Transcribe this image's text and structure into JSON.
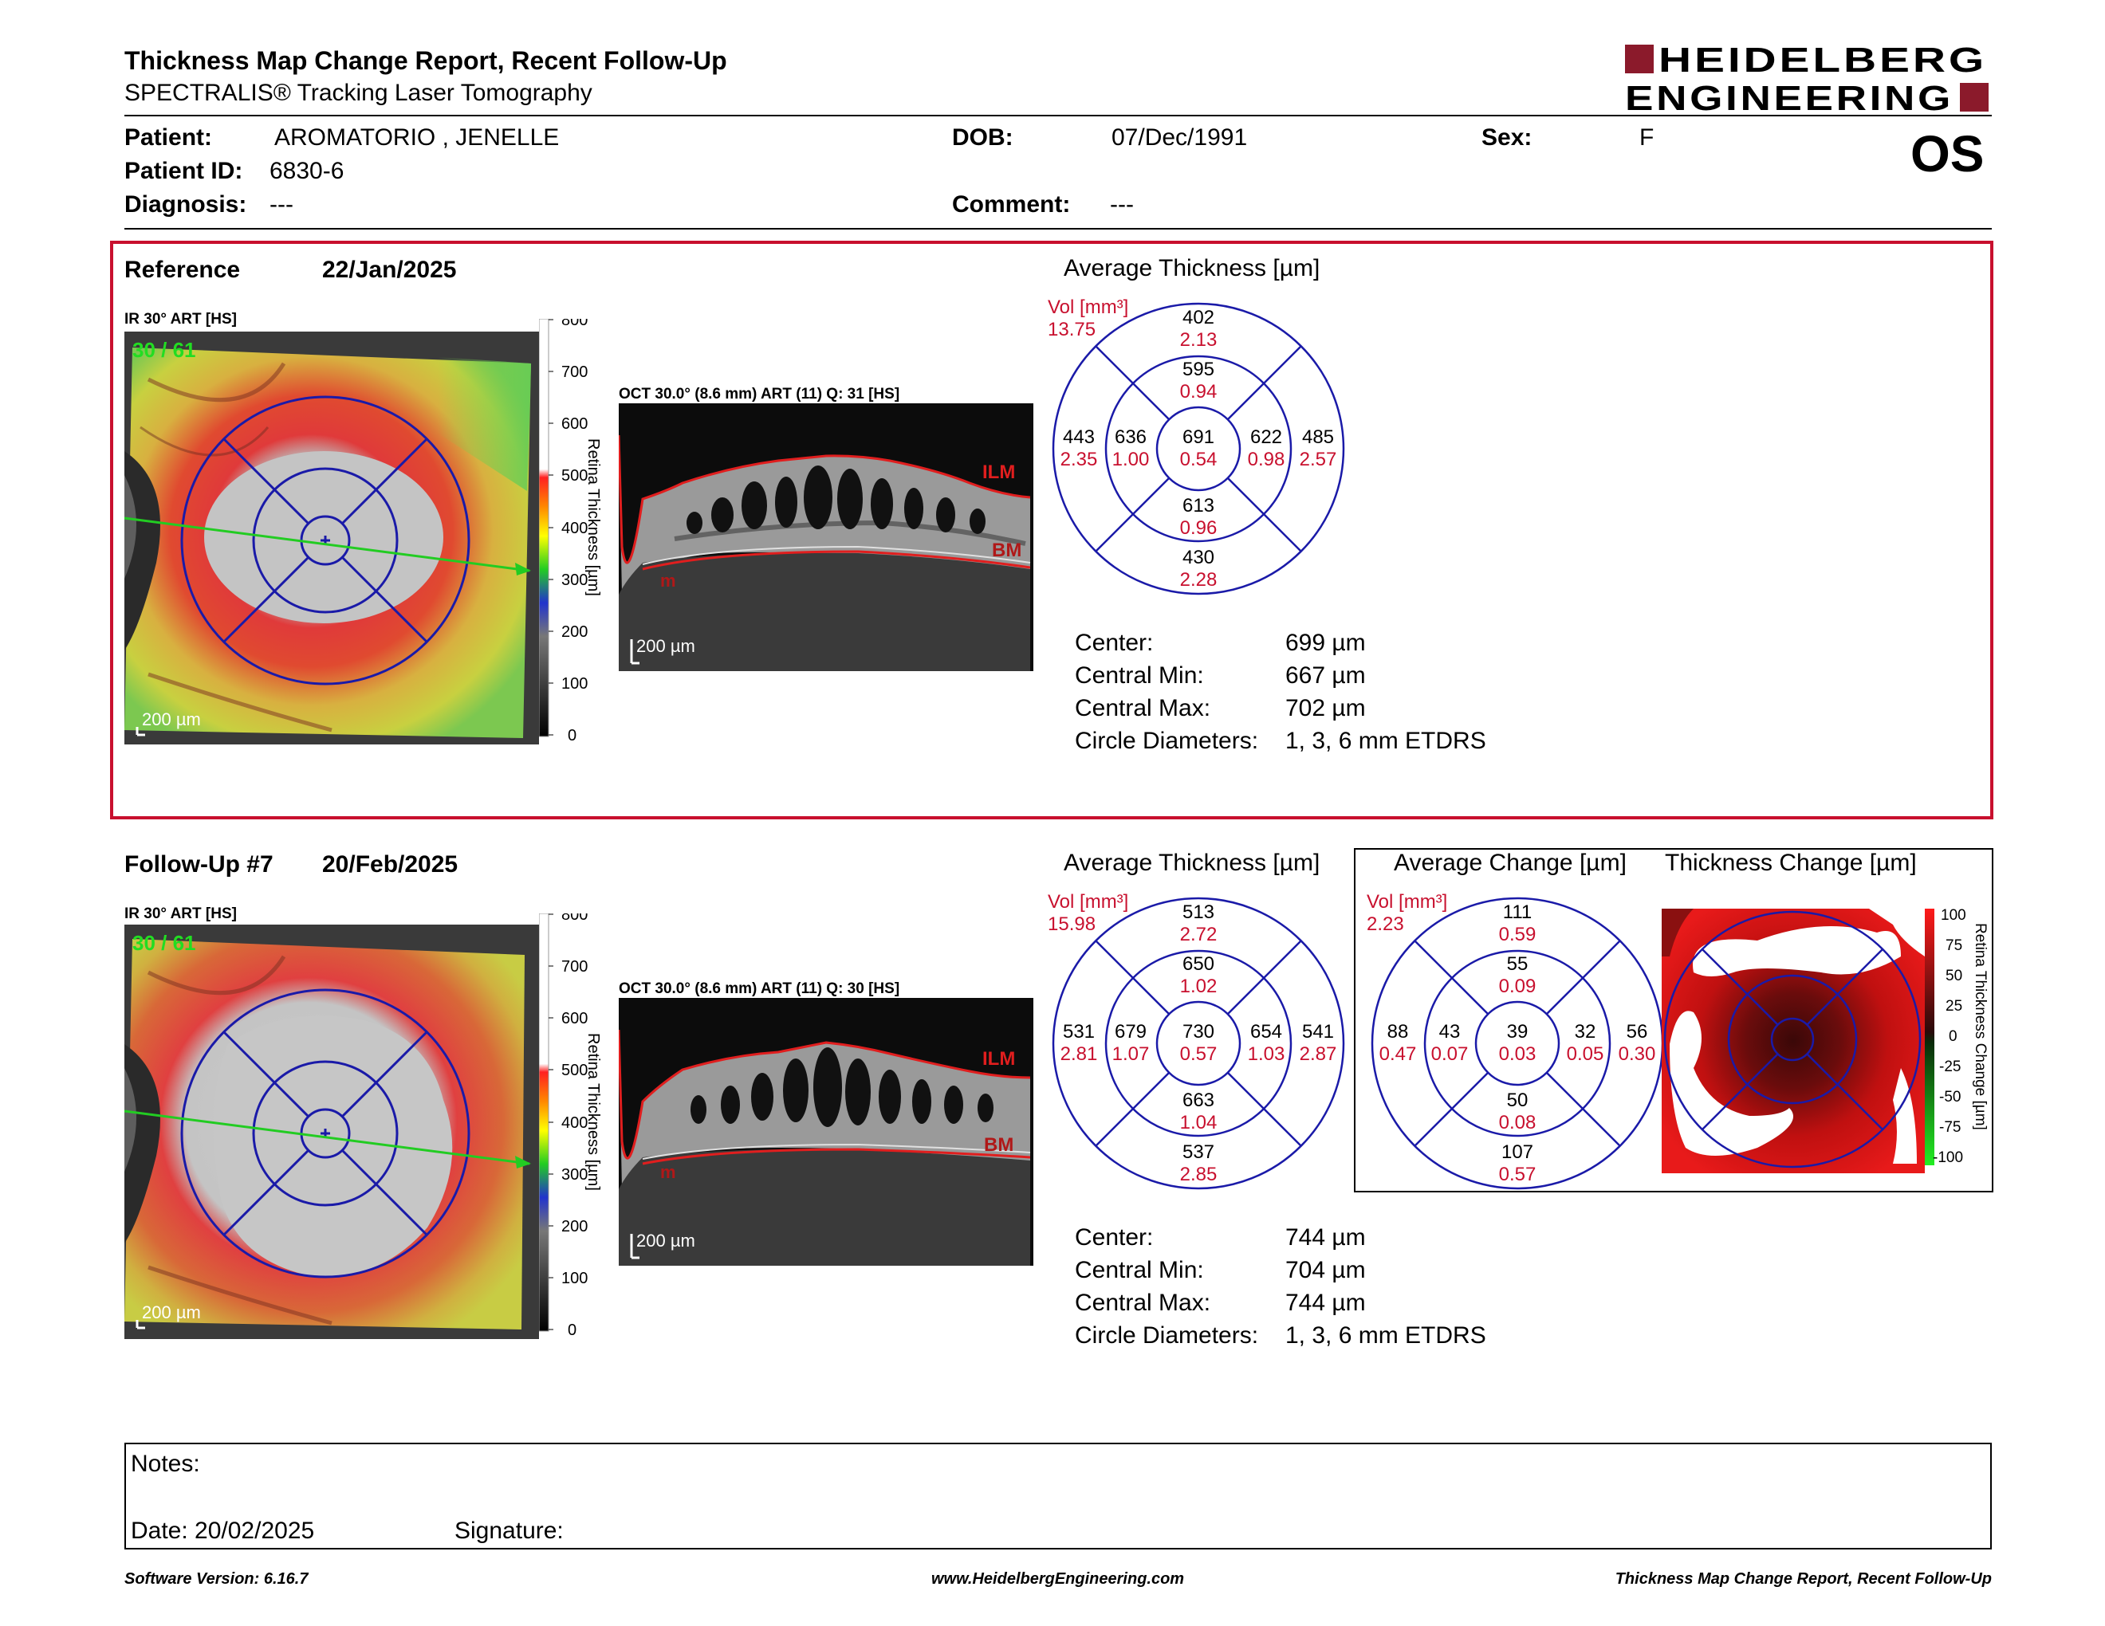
{
  "header": {
    "title": "Thickness Map Change Report, Recent Follow-Up",
    "subtitle": "SPECTRALIS® Tracking Laser Tomography",
    "logo_line1": "HEIDELBERG",
    "logo_line2": "ENGINEERING",
    "eye": "OS"
  },
  "patient": {
    "patient_label": "Patient:",
    "patient_value": "AROMATORIO , JENELLE",
    "dob_label": "DOB:",
    "dob_value": "07/Dec/1991",
    "sex_label": "Sex:",
    "sex_value": "F",
    "id_label": "Patient ID:",
    "id_value": "6830-6",
    "diagnosis_label": "Diagnosis:",
    "diagnosis_value": "---",
    "comment_label": "Comment:",
    "comment_value": "---"
  },
  "reference": {
    "label": "Reference",
    "date": "22/Jan/2025",
    "ir_label": "IR 30° ART [HS]",
    "ir_overlay": "30 / 61",
    "scale_label": "200 µm",
    "oct_label": "OCT 30.0° (8.6 mm) ART (11) Q: 31 [HS]",
    "oct_scale": "200 µm",
    "ilm": "ILM",
    "bm": "BM",
    "im": "m",
    "colorbar_title": "Retina Thickness [µm]",
    "colorbar_ticks": [
      "800",
      "700",
      "600",
      "500",
      "400",
      "300",
      "200",
      "100",
      "0"
    ],
    "avg_title": "Average Thickness [µm]",
    "vol_label": "Vol [mm³]",
    "vol_value": "13.75",
    "etdrs": {
      "center": [
        "691",
        "0.54"
      ],
      "inner_top": [
        "595",
        "0.94"
      ],
      "inner_left": [
        "636",
        "1.00"
      ],
      "inner_right": [
        "622",
        "0.98"
      ],
      "inner_bottom": [
        "613",
        "0.96"
      ],
      "outer_top": [
        "402",
        "2.13"
      ],
      "outer_left": [
        "443",
        "2.35"
      ],
      "outer_right": [
        "485",
        "2.57"
      ],
      "outer_bottom": [
        "430",
        "2.28"
      ]
    },
    "stats": [
      {
        "label": "Center:",
        "value": "699 µm"
      },
      {
        "label": "Central Min:",
        "value": "667 µm"
      },
      {
        "label": "Central Max:",
        "value": "702 µm"
      },
      {
        "label": "Circle Diameters:",
        "value": "1, 3, 6 mm ETDRS"
      }
    ]
  },
  "followup": {
    "label": "Follow-Up #7",
    "date": "20/Feb/2025",
    "ir_label": "IR 30° ART [HS]",
    "ir_overlay": "30 / 61",
    "scale_label": "200 µm",
    "oct_label": "OCT 30.0° (8.6 mm) ART (11) Q: 30 [HS]",
    "oct_scale": "200 µm",
    "ilm": "ILM",
    "bm": "BM",
    "im": "m",
    "colorbar_title": "Retina Thickness [µm]",
    "colorbar_ticks": [
      "800",
      "700",
      "600",
      "500",
      "400",
      "300",
      "200",
      "100",
      "0"
    ],
    "avg_title": "Average Thickness [µm]",
    "vol_label": "Vol [mm³]",
    "vol_value": "15.98",
    "etdrs": {
      "center": [
        "730",
        "0.57"
      ],
      "inner_top": [
        "650",
        "1.02"
      ],
      "inner_left": [
        "679",
        "1.07"
      ],
      "inner_right": [
        "654",
        "1.03"
      ],
      "inner_bottom": [
        "663",
        "1.04"
      ],
      "outer_top": [
        "513",
        "2.72"
      ],
      "outer_left": [
        "531",
        "2.81"
      ],
      "outer_right": [
        "541",
        "2.87"
      ],
      "outer_bottom": [
        "537",
        "2.85"
      ]
    },
    "stats": [
      {
        "label": "Center:",
        "value": "744 µm"
      },
      {
        "label": "Central Min:",
        "value": "704 µm"
      },
      {
        "label": "Central Max:",
        "value": "744 µm"
      },
      {
        "label": "Circle Diameters:",
        "value": "1, 3, 6 mm ETDRS"
      }
    ]
  },
  "change": {
    "avg_title": "Average Change [µm]",
    "map_title": "Thickness Change [µm]",
    "vol_label": "Vol [mm³]",
    "vol_value": "2.23",
    "etdrs": {
      "center": [
        "39",
        "0.03"
      ],
      "inner_top": [
        "55",
        "0.09"
      ],
      "inner_left": [
        "43",
        "0.07"
      ],
      "inner_right": [
        "32",
        "0.05"
      ],
      "inner_bottom": [
        "50",
        "0.08"
      ],
      "outer_top": [
        "111",
        "0.59"
      ],
      "outer_left": [
        "88",
        "0.47"
      ],
      "outer_right": [
        "56",
        "0.30"
      ],
      "outer_bottom": [
        "107",
        "0.57"
      ]
    },
    "colorbar_title": "Retina Thickness Change [µm]",
    "colorbar_ticks": [
      "100",
      "75",
      "50",
      "25",
      "0",
      "-25",
      "-50",
      "-75",
      "-100"
    ]
  },
  "notes": {
    "notes_label": "Notes:",
    "date_label": "Date: 20/02/2025",
    "signature_label": "Signature:"
  },
  "footer": {
    "software": "Software Version: 6.16.7",
    "website": "www.HeidelbergEngineering.com",
    "report": "Thickness Map Change Report, Recent Follow-Up"
  },
  "colors": {
    "accent_red": "#c8102e",
    "grid_blue": "#1a1aa8",
    "logo_red": "#8b1a2b",
    "scan_green": "#22cc22"
  }
}
